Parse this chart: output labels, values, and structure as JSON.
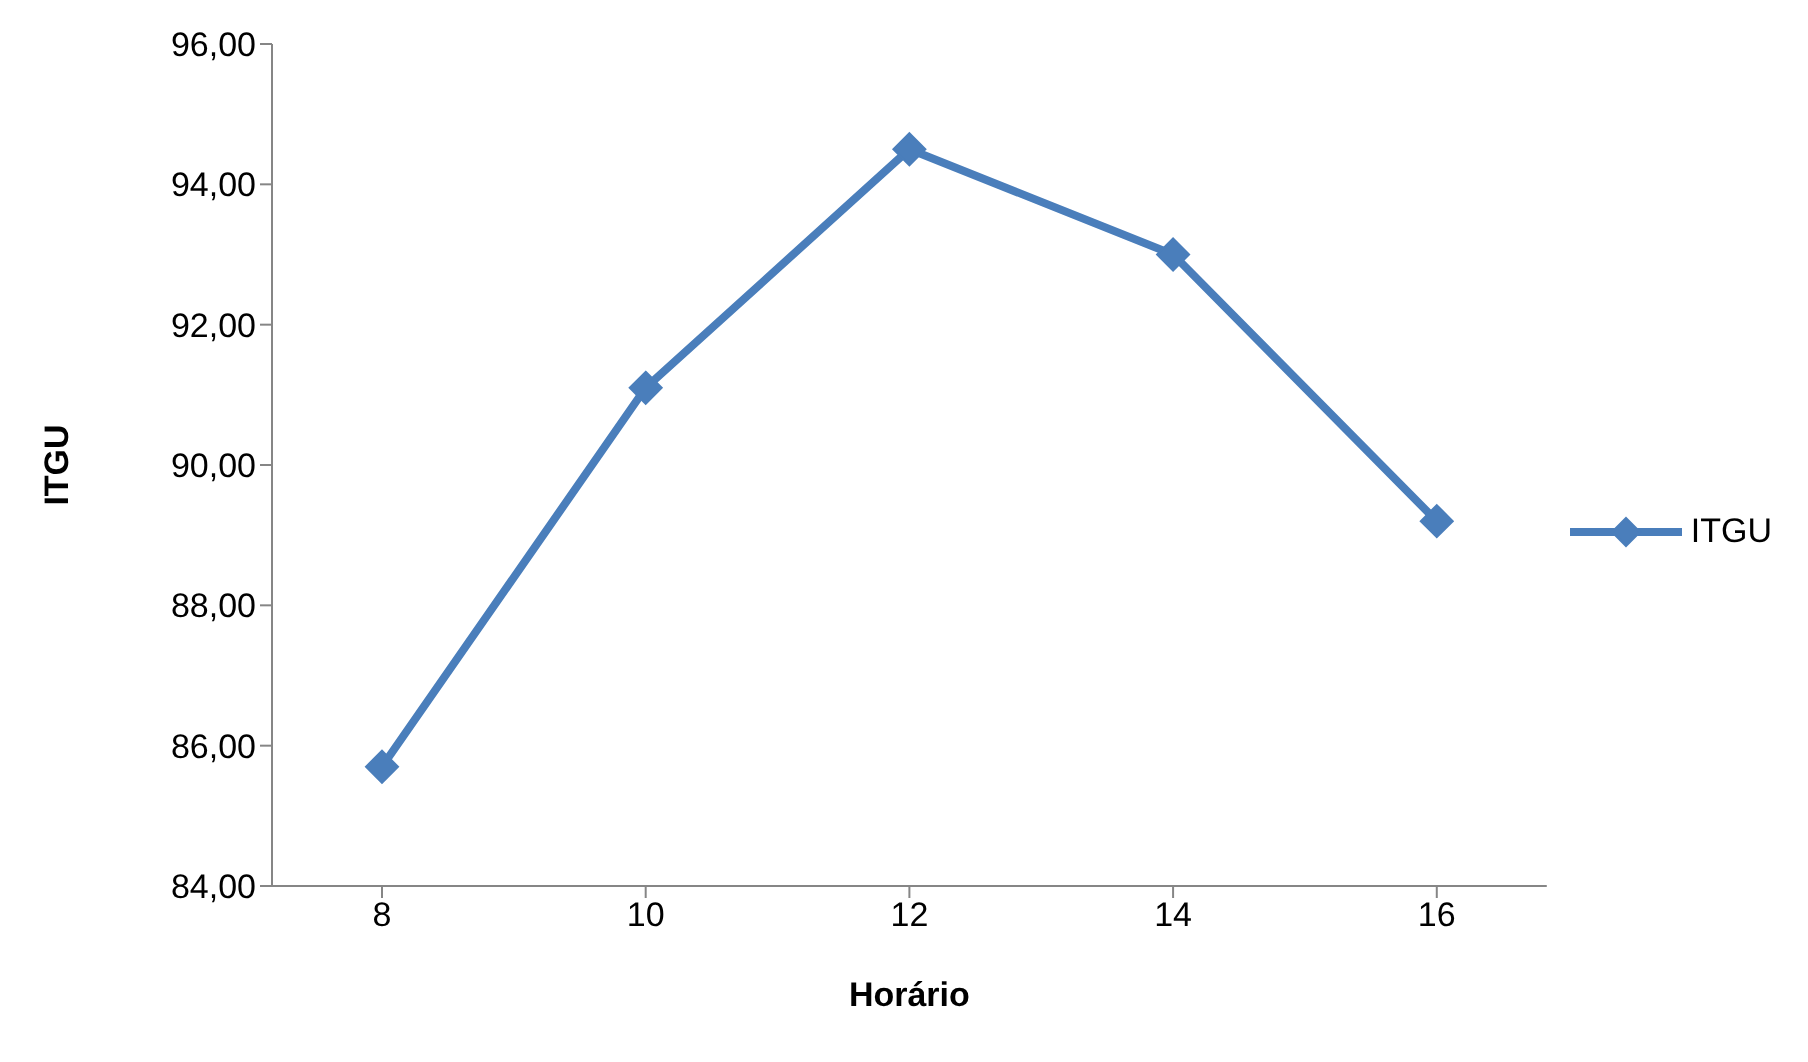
{
  "chart_data": {
    "type": "line",
    "xlabel": "Horário",
    "ylabel": "ITGU",
    "categories": [
      "8",
      "10",
      "12",
      "14",
      "16"
    ],
    "series": [
      {
        "name": "ITGU",
        "color": "#4a7ebb",
        "values": [
          85.7,
          91.1,
          94.5,
          93.0,
          89.2
        ]
      }
    ],
    "ylim": [
      84,
      96
    ],
    "yticks": [
      {
        "value": 84,
        "label": "84,00"
      },
      {
        "value": 86,
        "label": "86,00"
      },
      {
        "value": 88,
        "label": "88,00"
      },
      {
        "value": 90,
        "label": "90,00"
      },
      {
        "value": 92,
        "label": "92,00"
      },
      {
        "value": 94,
        "label": "94,00"
      },
      {
        "value": 96,
        "label": "96,00"
      }
    ],
    "grid": false,
    "legend": "right",
    "marker": "diamond",
    "line_style": "solid"
  }
}
